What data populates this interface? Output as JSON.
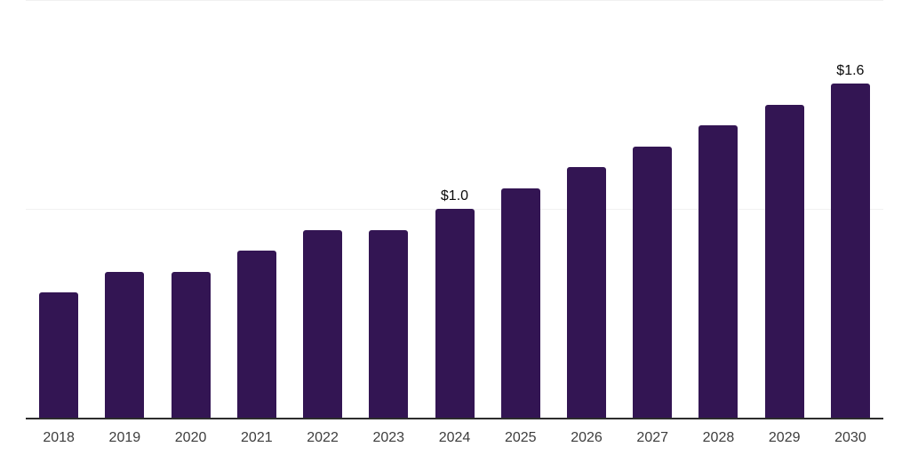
{
  "chart_data": {
    "type": "bar",
    "categories": [
      "2018",
      "2019",
      "2020",
      "2021",
      "2022",
      "2023",
      "2024",
      "2025",
      "2026",
      "2027",
      "2028",
      "2029",
      "2030"
    ],
    "values": [
      0.6,
      0.7,
      0.7,
      0.8,
      0.9,
      0.9,
      1.0,
      1.1,
      1.2,
      1.3,
      1.4,
      1.5,
      1.6
    ],
    "bar_labels": [
      "",
      "",
      "",
      "",
      "",
      "",
      "$1.0",
      "",
      "",
      "",
      "",
      "",
      "$1.6"
    ],
    "ylim": [
      0,
      2.0
    ],
    "gridline_values": [
      1.0,
      2.0
    ],
    "grid": "horizontal",
    "legend": "none",
    "colors": {
      "bar": "#331553",
      "gridline": "#f1f1f1",
      "axis": "#2d2d2d",
      "tick_label": "#3d3d3d",
      "value_label": "#0a0a0a",
      "background": "#ffffff"
    }
  }
}
